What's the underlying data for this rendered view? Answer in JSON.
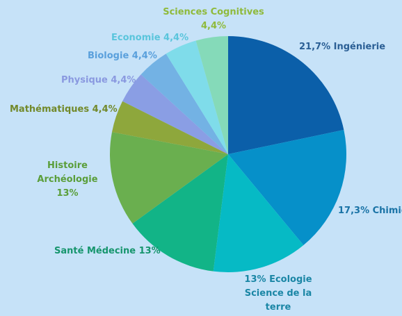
{
  "chart_data": {
    "type": "pie",
    "title": "",
    "slices": [
      {
        "name": "Ingénierie",
        "value": 21.7,
        "label_text": "21,7% Ingénierie",
        "color": "#0b5fa9"
      },
      {
        "name": "Chimie",
        "value": 17.3,
        "label_text": "17,3% Chimie",
        "color": "#0690c9"
      },
      {
        "name": "Ecologie Science de la terre",
        "value": 13,
        "label_text": "13% Ecologie\nScience de la\nterre",
        "color": "#06bac5"
      },
      {
        "name": "Santé Médecine",
        "value": 13,
        "label_text": "Santé Médecine 13%",
        "color": "#12b487"
      },
      {
        "name": "Histoire Archéologie",
        "value": 13,
        "label_text": "Histoire\nArchéologie 13%",
        "color": "#6aaf4f"
      },
      {
        "name": "Mathématiques",
        "value": 4.4,
        "label_text": "Mathématiques  4,4%",
        "color": "#8ea73c"
      },
      {
        "name": "Physique",
        "value": 4.4,
        "label_text": "Physique  4,4%",
        "color": "#8a9ee4"
      },
      {
        "name": "Biologie",
        "value": 4.4,
        "label_text": "Biologie 4,4%",
        "color": "#73b2e4"
      },
      {
        "name": "Economie",
        "value": 4.4,
        "label_text": "Economie 4,4%",
        "color": "#7fdcea"
      },
      {
        "name": "Sciences Cognitives",
        "value": 4.4,
        "label_text": "Sciences Cognitives\n4,4%",
        "color": "#85dab9"
      }
    ],
    "label_colors": [
      "#2b5f95",
      "#1a73a6",
      "#1a86a5",
      "#16956d",
      "#5a9e3a",
      "#72892a",
      "#8a99e0",
      "#5aa0dc",
      "#5ac5dc",
      "#8fba3c"
    ]
  }
}
